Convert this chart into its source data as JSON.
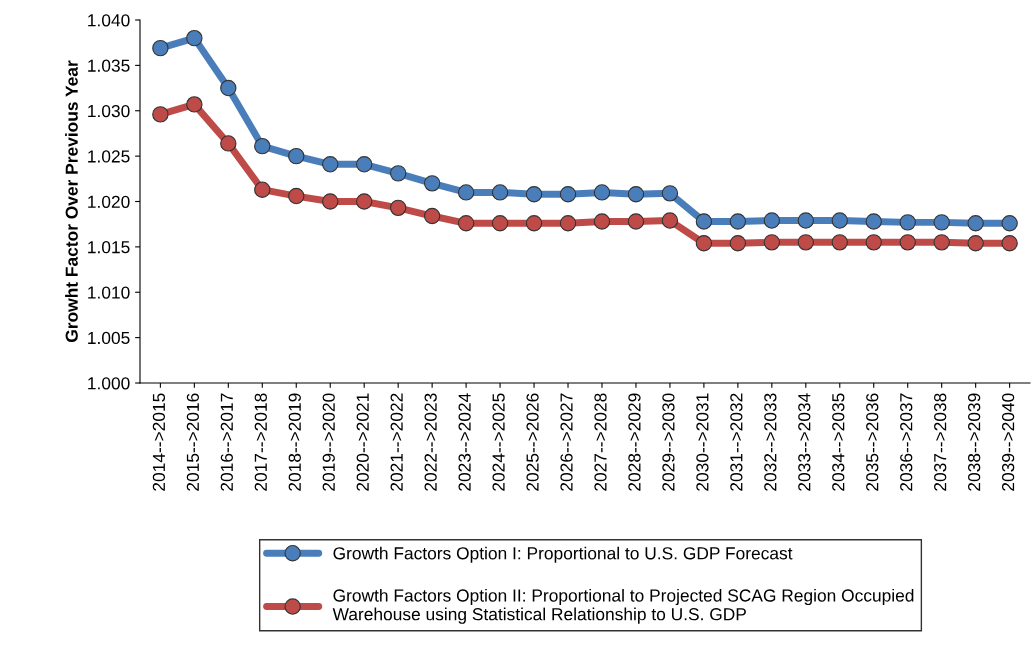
{
  "chart_data": {
    "type": "line",
    "ylabel": "Growht Factor Over Previous Year",
    "categories": [
      "2014-->2015",
      "2015-->2016",
      "2016-->2017",
      "2017-->2018",
      "2018-->2019",
      "2019-->2020",
      "2020-->2021",
      "2021-->2022",
      "2022-->2023",
      "2023-->2024",
      "2024-->2025",
      "2025-->2026",
      "2026-->2027",
      "2027-->2028",
      "2028-->2029",
      "2029-->2030",
      "2030-->2031",
      "2031-->2032",
      "2032-->2033",
      "2033-->2034",
      "2034-->2035",
      "2035-->2036",
      "2036-->2037",
      "2037-->2038",
      "2038-->2039",
      "2039-->2040"
    ],
    "series": [
      {
        "name": "Growth Factors Option I: Proportional to U.S. GDP Forecast",
        "color": "#4a7ebb",
        "values": [
          1.0369,
          1.038,
          1.0325,
          1.0261,
          1.025,
          1.0241,
          1.0241,
          1.0231,
          1.022,
          1.021,
          1.021,
          1.0208,
          1.0208,
          1.021,
          1.0208,
          1.0209,
          1.0178,
          1.0178,
          1.0179,
          1.0179,
          1.0179,
          1.0178,
          1.0177,
          1.0177,
          1.0176,
          1.0176
        ]
      },
      {
        "name": "Growth Factors Option II: Proportional to Projected SCAG Region Occupied\nWarehouse using Statistical Relationship to U.S. GDP",
        "color": "#be4b48",
        "values": [
          1.0296,
          1.0307,
          1.0264,
          1.0213,
          1.0206,
          1.02,
          1.02,
          1.0193,
          1.0184,
          1.0176,
          1.0176,
          1.0176,
          1.0176,
          1.0178,
          1.0178,
          1.0179,
          1.0154,
          1.0154,
          1.0155,
          1.0155,
          1.0155,
          1.0155,
          1.0155,
          1.0155,
          1.0154,
          1.0154
        ]
      }
    ],
    "ylim": [
      1.0,
      1.04
    ],
    "yticks": [
      {
        "value": 1.0,
        "label": "1.000"
      },
      {
        "value": 1.005,
        "label": "1.005"
      },
      {
        "value": 1.01,
        "label": "1.010"
      },
      {
        "value": 1.015,
        "label": "1.015"
      },
      {
        "value": 1.02,
        "label": "1.020"
      },
      {
        "value": 1.025,
        "label": "1.025"
      },
      {
        "value": 1.03,
        "label": "1.030"
      },
      {
        "value": 1.035,
        "label": "1.035"
      },
      {
        "value": 1.04,
        "label": "1.040"
      }
    ],
    "grid": false,
    "legend": "bottom",
    "marker": "circle",
    "line_style": "solid"
  }
}
